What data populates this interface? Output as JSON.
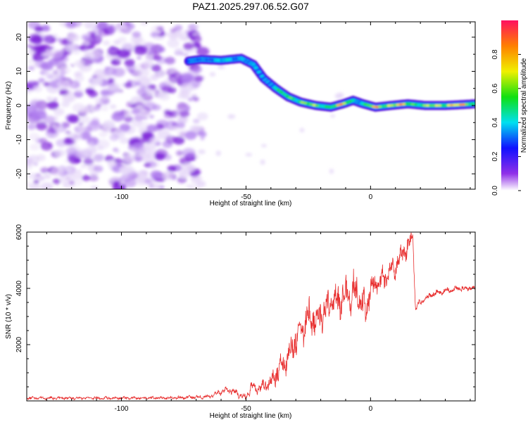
{
  "figure_title": "PAZ1.2025.297.06.52.G07",
  "colors": {
    "snr_line": "#e83030",
    "axis": "#000000",
    "noise_purple": "#7b1ed8",
    "noise_light": "#e6d8f8"
  },
  "chart_data": [
    {
      "type": "heatmap",
      "title": "",
      "xlabel": "Height of straight line (km)",
      "ylabel": "Frequency (Hz)",
      "xlim": [
        -138,
        42
      ],
      "ylim": [
        -24.5,
        24.5
      ],
      "x_ticks": [
        -100,
        -50,
        0
      ],
      "x_tick_labels": [
        "-100",
        "-50",
        "0"
      ],
      "y_ticks": [
        -20,
        -10,
        0,
        10,
        20
      ],
      "y_tick_labels": [
        "-20",
        "-10",
        "0",
        "10",
        "20"
      ],
      "ridge_trace": {
        "x": [
          -73,
          -68,
          -60,
          -52,
          -47,
          -43,
          -38,
          -33,
          -28,
          -22,
          -16,
          -11,
          -7,
          -3,
          2,
          8,
          15,
          22,
          30,
          38,
          42
        ],
        "frequency": [
          13,
          13.5,
          13.2,
          13.8,
          12,
          8,
          5,
          2.5,
          1,
          0,
          -0.5,
          0.5,
          1.5,
          0.5,
          -0.5,
          0,
          0.5,
          0,
          0,
          0.3,
          0.5
        ],
        "amplitude": [
          0.3,
          0.4,
          0.45,
          0.5,
          0.35,
          0.4,
          0.55,
          0.7,
          0.8,
          0.7,
          0.75,
          0.9,
          0.6,
          0.55,
          0.95,
          0.9,
          0.85,
          0.7,
          0.95,
          0.9,
          0.8
        ]
      },
      "noise_region_x": [
        -138,
        -73
      ],
      "colorbar": {
        "label": "Normalized spectral amplitude",
        "range": [
          0,
          1
        ],
        "ticks": [
          0.0,
          0.2,
          0.4,
          0.6,
          0.8
        ],
        "tick_labels": [
          "0.0",
          "0.2",
          "0.4",
          "0.6",
          "0.8"
        ]
      }
    },
    {
      "type": "line",
      "title": "",
      "xlabel": "Height of straight line (km)",
      "ylabel": "SNR (10 * v/v)",
      "xlim": [
        -138,
        42
      ],
      "ylim": [
        0,
        6000
      ],
      "x_ticks": [
        -100,
        -50,
        0
      ],
      "x_tick_labels": [
        "-100",
        "-50",
        "0"
      ],
      "y_ticks": [
        2000,
        4000,
        6000
      ],
      "y_tick_labels": [
        "2000",
        "4000",
        "6000"
      ],
      "series": [
        {
          "name": "SNR",
          "x": [
            -138,
            -120,
            -100,
            -80,
            -65,
            -58,
            -54,
            -50,
            -48,
            -45,
            -40,
            -35,
            -30,
            -25,
            -20,
            -15,
            -10,
            -5,
            -2,
            0,
            5,
            10,
            15,
            17,
            18,
            20,
            25,
            30,
            35,
            42
          ],
          "values": [
            100,
            100,
            100,
            100,
            150,
            400,
            300,
            100,
            500,
            400,
            700,
            1300,
            2200,
            2900,
            3000,
            3500,
            3700,
            3900,
            3200,
            4000,
            4300,
            4800,
            5500,
            5900,
            3300,
            3500,
            3800,
            3900,
            4000,
            4000
          ],
          "noise_amplitude": [
            60,
            60,
            60,
            60,
            80,
            120,
            150,
            150,
            200,
            250,
            350,
            500,
            700,
            800,
            700,
            700,
            800,
            800,
            700,
            500,
            500,
            500,
            400,
            300,
            150,
            150,
            120,
            120,
            120,
            120
          ]
        }
      ]
    }
  ]
}
